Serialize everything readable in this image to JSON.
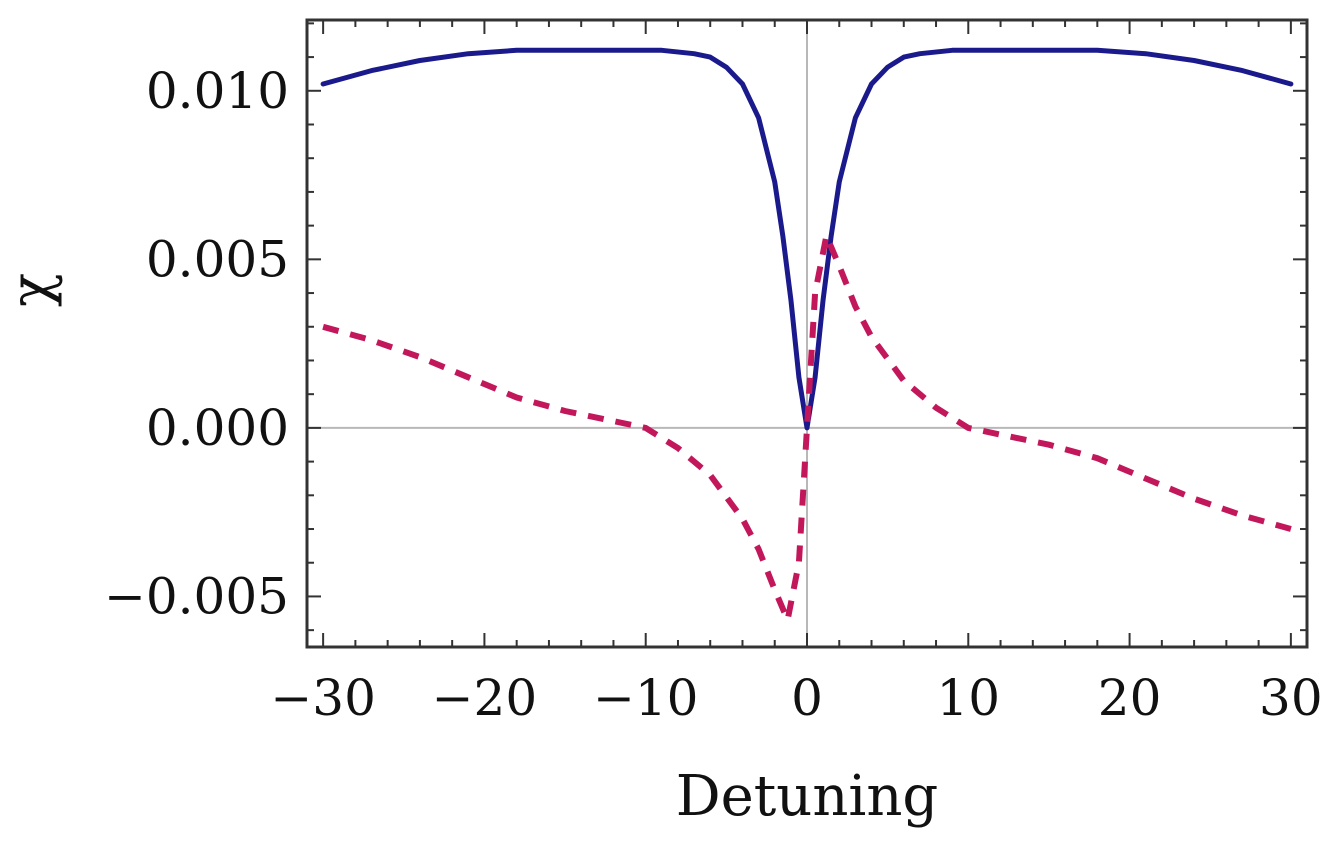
{
  "chart_data": {
    "type": "line",
    "title": "",
    "xlabel": "Detuning",
    "ylabel": "χ",
    "xlim": [
      -31,
      31
    ],
    "ylim": [
      -0.0065,
      0.0121
    ],
    "grid": false,
    "x_ticks": [
      -30,
      -20,
      -10,
      0,
      10,
      20,
      30
    ],
    "x_tick_labels": [
      "−30",
      "−20",
      "−10",
      "0",
      "10",
      "20",
      "30"
    ],
    "y_ticks": [
      -0.005,
      0.0,
      0.005,
      0.01
    ],
    "y_tick_labels": [
      "−0.005",
      "0.000",
      "0.005",
      "0.010"
    ],
    "series": [
      {
        "style": "solid",
        "color": "#1a1a8c",
        "points": [
          [
            -30,
            0.0102
          ],
          [
            -27,
            0.0106
          ],
          [
            -24,
            0.0109
          ],
          [
            -21,
            0.0111
          ],
          [
            -18,
            0.0112
          ],
          [
            -15,
            0.0112
          ],
          [
            -12,
            0.0112
          ],
          [
            -9,
            0.0112
          ],
          [
            -7,
            0.0111
          ],
          [
            -6,
            0.011
          ],
          [
            -5,
            0.0107
          ],
          [
            -4,
            0.0102
          ],
          [
            -3,
            0.0092
          ],
          [
            -2,
            0.0073
          ],
          [
            -1.5,
            0.0057
          ],
          [
            -1,
            0.0038
          ],
          [
            -0.5,
            0.0015
          ],
          [
            0,
            0.0
          ],
          [
            0.5,
            0.0015
          ],
          [
            1,
            0.0038
          ],
          [
            1.5,
            0.0057
          ],
          [
            2,
            0.0073
          ],
          [
            3,
            0.0092
          ],
          [
            4,
            0.0102
          ],
          [
            5,
            0.0107
          ],
          [
            6,
            0.011
          ],
          [
            7,
            0.0111
          ],
          [
            9,
            0.0112
          ],
          [
            12,
            0.0112
          ],
          [
            15,
            0.0112
          ],
          [
            18,
            0.0112
          ],
          [
            21,
            0.0111
          ],
          [
            24,
            0.0109
          ],
          [
            27,
            0.0106
          ],
          [
            30,
            0.0102
          ]
        ]
      },
      {
        "style": "dashed",
        "color": "#c2185b",
        "points": [
          [
            -30,
            0.003
          ],
          [
            -27,
            0.0026
          ],
          [
            -24,
            0.0021
          ],
          [
            -21,
            0.0015
          ],
          [
            -18,
            0.0009
          ],
          [
            -15,
            0.0005
          ],
          [
            -12,
            0.0002
          ],
          [
            -10,
            0.0
          ],
          [
            -8,
            -0.0006
          ],
          [
            -6,
            -0.0014
          ],
          [
            -4,
            -0.0027
          ],
          [
            -3,
            -0.0036
          ],
          [
            -2,
            -0.0048
          ],
          [
            -1.2,
            -0.0057
          ],
          [
            -0.5,
            -0.004
          ],
          [
            0,
            0.0
          ],
          [
            0.5,
            0.004
          ],
          [
            1.2,
            0.0057
          ],
          [
            2,
            0.0048
          ],
          [
            3,
            0.0036
          ],
          [
            4,
            0.0027
          ],
          [
            6,
            0.0014
          ],
          [
            8,
            0.0006
          ],
          [
            10,
            0.0
          ],
          [
            12,
            -0.0002
          ],
          [
            15,
            -0.0005
          ],
          [
            18,
            -0.0009
          ],
          [
            21,
            -0.0015
          ],
          [
            24,
            -0.0021
          ],
          [
            27,
            -0.0026
          ],
          [
            30,
            -0.003
          ]
        ]
      }
    ]
  }
}
